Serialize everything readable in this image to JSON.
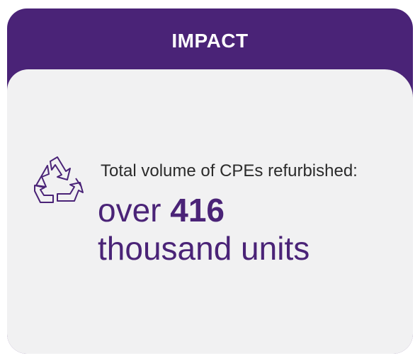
{
  "header": {
    "title": "IMPACT"
  },
  "content": {
    "label": "Total volume of CPEs refurbished:",
    "value_prefix": "over",
    "value": 416,
    "value_suffix": "thousand units"
  }
}
